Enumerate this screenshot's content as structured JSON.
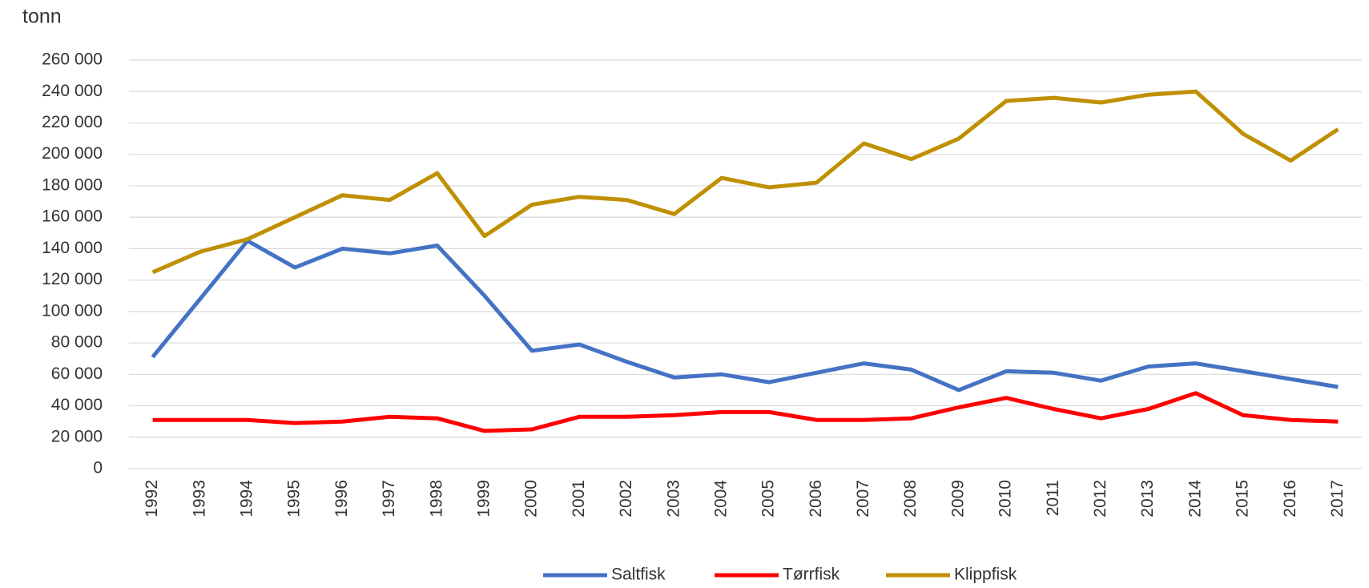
{
  "chart_data": {
    "type": "line",
    "y_label": "tonn",
    "categories": [
      "1992",
      "1993",
      "1994",
      "1995",
      "1996",
      "1997",
      "1998",
      "1999",
      "2000",
      "2001",
      "2002",
      "2003",
      "2004",
      "2005",
      "2006",
      "2007",
      "2008",
      "2009",
      "2010",
      "2011",
      "2012",
      "2013",
      "2014",
      "2015",
      "2016",
      "2017"
    ],
    "series": [
      {
        "name": "Saltfisk",
        "color": "#4472c4",
        "values": [
          71000,
          108000,
          145000,
          128000,
          140000,
          137000,
          142000,
          110000,
          75000,
          79000,
          68000,
          58000,
          60000,
          55000,
          61000,
          67000,
          63000,
          50000,
          62000,
          61000,
          56000,
          65000,
          67000,
          62000,
          57000,
          52000
        ]
      },
      {
        "name": "Tørrfisk",
        "color": "#ff0000",
        "values": [
          31000,
          31000,
          31000,
          29000,
          30000,
          33000,
          32000,
          24000,
          25000,
          33000,
          33000,
          34000,
          36000,
          36000,
          31000,
          31000,
          32000,
          39000,
          45000,
          38000,
          32000,
          38000,
          48000,
          34000,
          31000,
          30000
        ]
      },
      {
        "name": "Klippfisk",
        "color": "#bf9000",
        "values": [
          125000,
          138000,
          146000,
          160000,
          174000,
          171000,
          188000,
          148000,
          168000,
          173000,
          171000,
          162000,
          185000,
          179000,
          182000,
          207000,
          197000,
          210000,
          234000,
          236000,
          233000,
          238000,
          240000,
          213000,
          196000,
          216000
        ]
      }
    ],
    "ylim": [
      0,
      260000
    ],
    "yticks": [
      0,
      {
        "value": 20000,
        "label": "20 000"
      },
      {
        "value": 40000,
        "label": "40 000"
      },
      {
        "value": 60000,
        "label": "60 000"
      },
      {
        "value": 80000,
        "label": "80 000"
      },
      {
        "value": 100000,
        "label": "100 000"
      },
      {
        "value": 120000,
        "label": "120 000"
      },
      {
        "value": 140000,
        "label": "140 000"
      },
      {
        "value": 160000,
        "label": "160 000"
      },
      {
        "value": 180000,
        "label": "180 000"
      },
      {
        "value": 200000,
        "label": "200 000"
      },
      {
        "value": 220000,
        "label": "220 000"
      },
      {
        "value": 240000,
        "label": "240 000"
      },
      {
        "value": 260000,
        "label": "260 000"
      }
    ],
    "grid": true,
    "legend": "bottom"
  }
}
